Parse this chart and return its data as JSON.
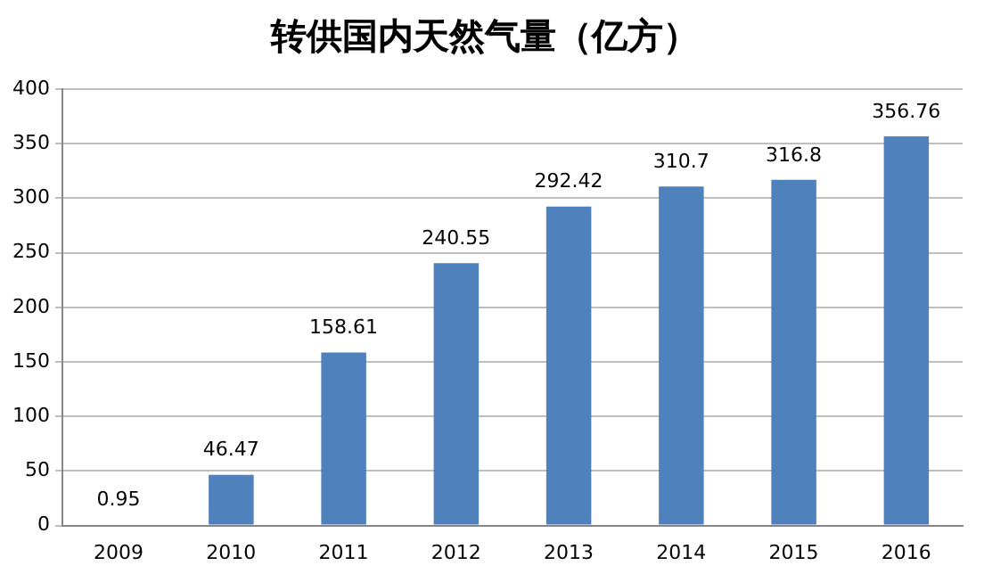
{
  "chart_data": {
    "type": "bar",
    "title": "转供国内天然气量（亿方）",
    "categories": [
      "2009",
      "2010",
      "2011",
      "2012",
      "2013",
      "2014",
      "2015",
      "2016"
    ],
    "values": [
      0.95,
      46.47,
      158.61,
      240.55,
      292.42,
      310.7,
      316.8,
      356.76
    ],
    "color": "#4f81bd",
    "ylim": [
      0,
      400
    ],
    "yticks": [
      0,
      50,
      100,
      150,
      200,
      250,
      300,
      350,
      400
    ],
    "grid": "y",
    "data_labels": true,
    "legend": false
  }
}
